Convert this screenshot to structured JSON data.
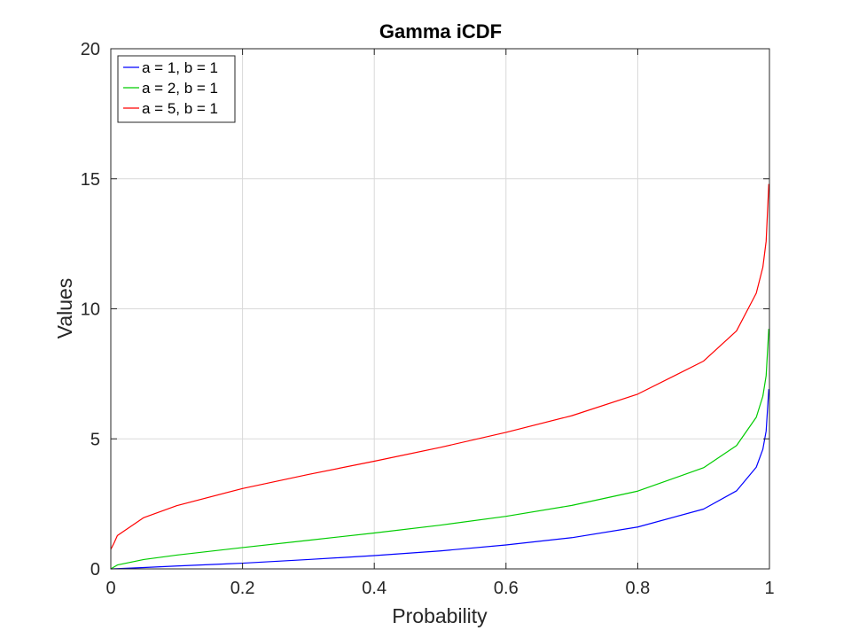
{
  "chart_data": {
    "type": "line",
    "title": "Gamma iCDF",
    "xlabel": "Probability",
    "ylabel": "Values",
    "xlim": [
      0,
      1
    ],
    "ylim": [
      0,
      20
    ],
    "x_ticks": [
      "0",
      "0.2",
      "0.4",
      "0.6",
      "0.8",
      "1"
    ],
    "y_ticks": [
      "0",
      "5",
      "10",
      "15",
      "20"
    ],
    "grid": true,
    "legend_placement": "top-left",
    "series": [
      {
        "name": "a = 1, b = 1",
        "color": "#0000ff",
        "points": [
          [
            0.0,
            0.0
          ],
          [
            0.05,
            0.05
          ],
          [
            0.1,
            0.11
          ],
          [
            0.2,
            0.22
          ],
          [
            0.3,
            0.36
          ],
          [
            0.4,
            0.51
          ],
          [
            0.5,
            0.69
          ],
          [
            0.6,
            0.92
          ],
          [
            0.7,
            1.2
          ],
          [
            0.8,
            1.61
          ],
          [
            0.9,
            2.3
          ],
          [
            0.95,
            3.0
          ],
          [
            0.98,
            3.91
          ],
          [
            0.99,
            4.6
          ],
          [
            0.995,
            5.3
          ],
          [
            0.999,
            6.91
          ]
        ]
      },
      {
        "name": "a = 2, b = 1",
        "color": "#00cc00",
        "points": [
          [
            0.0,
            0.0
          ],
          [
            0.01,
            0.15
          ],
          [
            0.05,
            0.36
          ],
          [
            0.1,
            0.53
          ],
          [
            0.2,
            0.82
          ],
          [
            0.3,
            1.1
          ],
          [
            0.4,
            1.38
          ],
          [
            0.5,
            1.68
          ],
          [
            0.6,
            2.02
          ],
          [
            0.7,
            2.44
          ],
          [
            0.8,
            2.99
          ],
          [
            0.9,
            3.89
          ],
          [
            0.95,
            4.74
          ],
          [
            0.98,
            5.83
          ],
          [
            0.99,
            6.64
          ],
          [
            0.995,
            7.43
          ],
          [
            0.999,
            9.23
          ]
        ]
      },
      {
        "name": "a = 5, b = 1",
        "color": "#ff0000",
        "points": [
          [
            0.0,
            0.75
          ],
          [
            0.005,
            1.0
          ],
          [
            0.01,
            1.28
          ],
          [
            0.05,
            1.97
          ],
          [
            0.1,
            2.43
          ],
          [
            0.2,
            3.09
          ],
          [
            0.3,
            3.63
          ],
          [
            0.4,
            4.14
          ],
          [
            0.5,
            4.67
          ],
          [
            0.6,
            5.25
          ],
          [
            0.7,
            5.89
          ],
          [
            0.8,
            6.72
          ],
          [
            0.9,
            7.99
          ],
          [
            0.95,
            9.15
          ],
          [
            0.98,
            10.6
          ],
          [
            0.99,
            11.6
          ],
          [
            0.995,
            12.6
          ],
          [
            0.999,
            14.8
          ]
        ]
      }
    ]
  }
}
